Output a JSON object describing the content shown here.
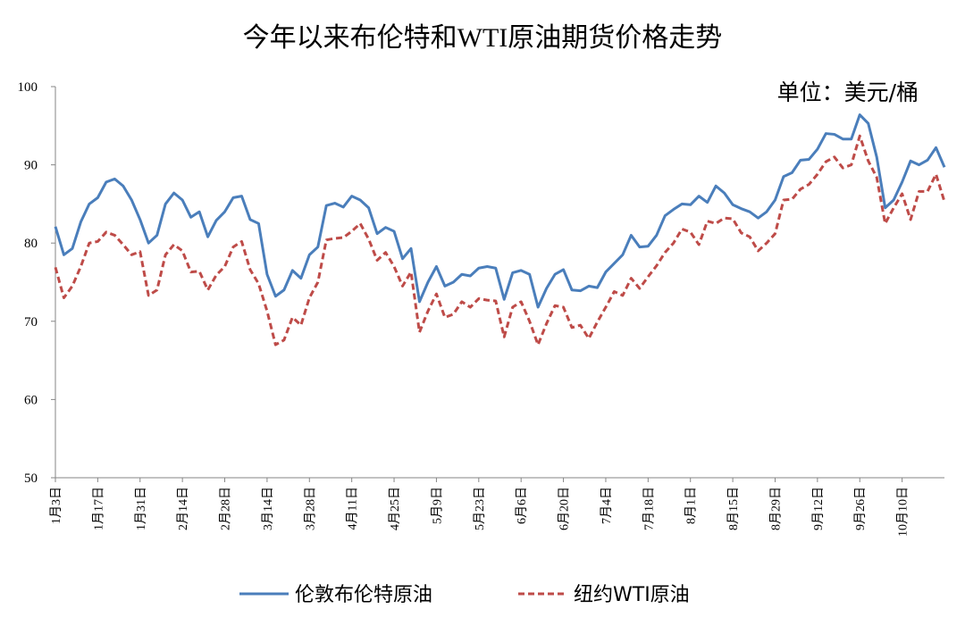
{
  "chart_data": {
    "type": "line",
    "title": "今年以来布伦特和WTI原油期货价格走势",
    "annotation": "单位：美元/桶",
    "categories": [
      "1月3日",
      null,
      null,
      null,
      null,
      "1月17日",
      null,
      null,
      null,
      null,
      "1月31日",
      null,
      null,
      null,
      null,
      "2月14日",
      null,
      null,
      null,
      null,
      "2月28日",
      null,
      null,
      null,
      null,
      "3月14日",
      null,
      null,
      null,
      null,
      "3月28日",
      null,
      null,
      null,
      null,
      "4月11日",
      null,
      null,
      null,
      null,
      "4月25日",
      null,
      null,
      null,
      null,
      "5月9日",
      null,
      null,
      null,
      null,
      "5月23日",
      null,
      null,
      null,
      null,
      "6月6日",
      null,
      null,
      null,
      null,
      "6月20日",
      null,
      null,
      null,
      null,
      "7月4日",
      null,
      null,
      null,
      null,
      "7月18日",
      null,
      null,
      null,
      null,
      "8月1日",
      null,
      null,
      null,
      null,
      "8月15日",
      null,
      null,
      null,
      null,
      "8月29日",
      null,
      null,
      null,
      null,
      "9月12日",
      null,
      null,
      null,
      null,
      "9月26日",
      null,
      null,
      null,
      null,
      "10月10日",
      null,
      null,
      null,
      null,
      null
    ],
    "series": [
      {
        "name": "伦敦布伦特原油",
        "color": "#4a7ebb",
        "dash": false,
        "values": [
          82.1,
          78.5,
          79.3,
          82.7,
          85.0,
          85.8,
          87.8,
          88.2,
          87.3,
          85.5,
          83.0,
          80.0,
          81.0,
          85.0,
          86.4,
          85.5,
          83.3,
          84.0,
          80.8,
          82.9,
          84.0,
          85.8,
          86.0,
          83.0,
          82.5,
          76.0,
          73.2,
          74.0,
          76.5,
          75.5,
          78.5,
          79.5,
          84.8,
          85.1,
          84.6,
          86.0,
          85.5,
          84.5,
          81.2,
          82.0,
          81.5,
          78.0,
          79.3,
          72.5,
          75.0,
          77.0,
          74.5,
          75.0,
          76.0,
          75.8,
          76.8,
          77.0,
          76.8,
          72.8,
          76.2,
          76.5,
          76.0,
          71.8,
          74.2,
          76.0,
          76.6,
          74.0,
          73.9,
          74.5,
          74.3,
          76.3,
          77.4,
          78.5,
          81.0,
          79.5,
          79.6,
          81.0,
          83.5,
          84.3,
          85.0,
          84.9,
          86.0,
          85.2,
          87.3,
          86.4,
          84.9,
          84.4,
          84.0,
          83.2,
          84.0,
          85.5,
          88.5,
          89.0,
          90.6,
          90.7,
          92.0,
          94.0,
          93.9,
          93.3,
          93.3,
          96.4,
          95.3,
          91.0,
          84.5,
          85.5,
          87.8,
          90.5,
          90.0,
          90.6,
          92.2,
          89.7
        ]
      },
      {
        "name": "纽约WTI原油",
        "color": "#be4b48",
        "dash": true,
        "values": [
          76.9,
          73.0,
          74.5,
          77.0,
          80.0,
          80.2,
          81.4,
          81.0,
          79.8,
          78.5,
          78.9,
          73.3,
          74.0,
          78.5,
          79.8,
          79.0,
          76.3,
          76.4,
          74.0,
          75.9,
          77.0,
          79.5,
          80.2,
          76.6,
          74.8,
          71.3,
          67.0,
          67.6,
          70.5,
          69.5,
          73.0,
          75.0,
          80.4,
          80.6,
          80.7,
          81.5,
          82.5,
          80.5,
          77.8,
          78.8,
          77.0,
          74.5,
          76.3,
          68.6,
          71.3,
          73.5,
          70.5,
          70.9,
          72.5,
          71.8,
          72.9,
          72.7,
          72.6,
          68.0,
          71.8,
          72.5,
          70.0,
          67.0,
          69.7,
          72.0,
          71.8,
          69.2,
          69.5,
          67.8,
          69.9,
          71.8,
          73.8,
          73.3,
          75.5,
          74.2,
          75.7,
          77.1,
          78.8,
          80.0,
          81.8,
          81.4,
          79.8,
          82.8,
          82.5,
          83.2,
          83.1,
          81.3,
          80.8,
          79.0,
          80.0,
          81.2,
          85.5,
          85.6,
          86.9,
          87.5,
          88.8,
          90.4,
          91.0,
          89.6,
          90.0,
          93.7,
          90.5,
          88.4,
          82.5,
          84.5,
          86.3,
          83.0,
          86.6,
          86.6,
          88.8,
          85.3
        ]
      }
    ],
    "ylim": [
      50,
      100
    ],
    "yticks": [
      50,
      60,
      70,
      80,
      90,
      100
    ],
    "grid": false,
    "legend": "bottom"
  }
}
